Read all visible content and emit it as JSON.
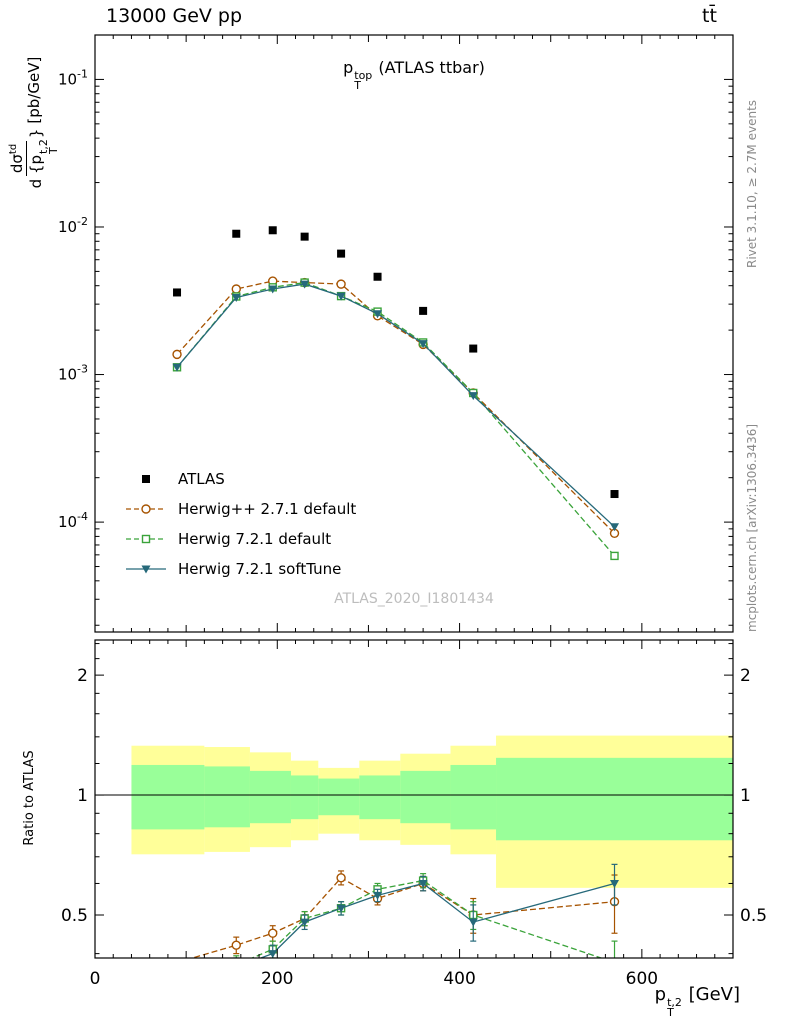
{
  "header": {
    "left": "13000 GeV pp",
    "right": "tt̄"
  },
  "panel_title": {
    "base": "p",
    "sub": "T",
    "sup": "top",
    "rest": " (ATLAS ttbar)"
  },
  "y_label": {
    "numerator_main": "dσ",
    "numerator_sup": "td",
    "den_pre": "d {",
    "den_base": "p",
    "den_sub": "T",
    "den_sup": "t,2",
    "den_post": "}",
    "units": "[pb/GeV]"
  },
  "x_label": {
    "base": "p",
    "sub": "T",
    "sup": "t,2",
    "units": " [GeV]"
  },
  "ratio_label": "Ratio to ATLAS",
  "watermark": "ATLAS_2020_I1801434",
  "side_notes": {
    "top": "Rivet 3.1.10, ≥ 2.7M events",
    "bottom": "mcplots.cern.ch [arXiv:1306.3436]"
  },
  "legend": {
    "items": [
      {
        "label": "ATLAS",
        "marker": "square-filled",
        "color": "#000000",
        "line": "none"
      },
      {
        "label": "Herwig++ 2.7.1 default",
        "marker": "circle-open",
        "color": "#a65300",
        "line": "dashed"
      },
      {
        "label": "Herwig 7.2.1 default",
        "marker": "square-open",
        "color": "#3aa33a",
        "line": "dashed"
      },
      {
        "label": "Herwig 7.2.1 softTune",
        "marker": "triangle-down-filled",
        "color": "#26697a",
        "line": "solid"
      }
    ]
  },
  "chart_data": {
    "type": "line",
    "title": "pT^top (ATLAS ttbar)",
    "xlabel": "pT^{t,2} [GeV]",
    "ylabel": "dσ^td / d{pT^{t,2}} [pb/GeV]",
    "ylabel_ratio": "Ratio to ATLAS",
    "x": [
      90,
      155,
      195,
      230,
      270,
      310,
      360,
      415,
      570
    ],
    "xlim": [
      0,
      700
    ],
    "x_major_ticks": [
      0,
      200,
      400,
      600
    ],
    "main_panel": {
      "yscale": "log",
      "ylim": [
        1.8e-05,
        0.2
      ],
      "y_decades": [
        -1,
        -2,
        -3,
        -4
      ],
      "series": [
        {
          "name": "ATLAS",
          "marker": "square-filled",
          "color": "#000000",
          "line": "none",
          "values": [
            0.0036,
            0.009,
            0.0095,
            0.0086,
            0.0066,
            0.0046,
            0.0027,
            0.0015,
            0.000155
          ]
        },
        {
          "name": "Herwig++ 2.7.1 default",
          "marker": "circle-open",
          "color": "#a65300",
          "line": "dashed",
          "values": [
            0.00137,
            0.0038,
            0.0043,
            0.0042,
            0.0041,
            0.0025,
            0.0016,
            0.00075,
            8.4e-05
          ]
        },
        {
          "name": "Herwig 7.2.1 default",
          "marker": "square-open",
          "color": "#3aa33a",
          "line": "dashed",
          "values": [
            0.00112,
            0.00338,
            0.0039,
            0.0042,
            0.0034,
            0.00267,
            0.00165,
            0.00075,
            5.9e-05
          ]
        },
        {
          "name": "Herwig 7.2.1 softTune",
          "marker": "triangle-down-filled",
          "color": "#26697a",
          "line": "solid",
          "values": [
            0.00112,
            0.00333,
            0.0038,
            0.0041,
            0.0034,
            0.00258,
            0.00162,
            0.00072,
            9.3e-05
          ]
        }
      ]
    },
    "ratio_panel": {
      "yscale": "log",
      "ylim": [
        0.39,
        2.45
      ],
      "y_major_ticks": [
        0.5,
        1,
        2
      ],
      "y_minor_ticks": [
        0.4,
        0.6,
        0.7,
        0.8,
        0.9,
        1.2,
        1.4,
        1.6,
        1.8,
        2.2,
        2.4
      ],
      "reference_line": 1,
      "band_colors": {
        "outer": "#ffff99",
        "inner": "#99ff99"
      },
      "bands": {
        "edges": [
          40,
          120,
          170,
          215,
          245,
          290,
          335,
          390,
          440,
          700
        ],
        "yellow_lo": [
          0.71,
          0.72,
          0.74,
          0.77,
          0.8,
          0.77,
          0.75,
          0.71,
          0.585
        ],
        "yellow_hi": [
          1.33,
          1.32,
          1.28,
          1.22,
          1.17,
          1.22,
          1.27,
          1.33,
          1.41
        ],
        "green_lo": [
          0.82,
          0.83,
          0.85,
          0.87,
          0.89,
          0.87,
          0.85,
          0.82,
          0.77
        ],
        "green_hi": [
          1.19,
          1.18,
          1.15,
          1.12,
          1.1,
          1.12,
          1.15,
          1.19,
          1.24
        ]
      },
      "series": [
        {
          "name": "Herwig++ 2.7.1 default",
          "marker": "circle-open",
          "color": "#a65300",
          "line": "dashed",
          "values": [
            0.38,
            0.42,
            0.45,
            0.49,
            0.62,
            0.55,
            0.6,
            0.5,
            0.54
          ],
          "yerr": [
            0,
            0.02,
            0.02,
            0.02,
            0.025,
            0.02,
            0.025,
            0.05,
            0.09
          ]
        },
        {
          "name": "Herwig 7.2.1 default",
          "marker": "square-open",
          "color": "#3aa33a",
          "line": "dashed",
          "values": [
            0.31,
            0.375,
            0.41,
            0.49,
            0.52,
            0.58,
            0.61,
            0.5,
            0.38
          ],
          "yerr": [
            0,
            0.02,
            0.02,
            0.02,
            0.02,
            0.02,
            0.025,
            0.04,
            0.05
          ]
        },
        {
          "name": "Herwig 7.2.1 softTune",
          "marker": "triangle-down-filled",
          "color": "#26697a",
          "line": "solid",
          "values": [
            0.31,
            0.37,
            0.4,
            0.48,
            0.52,
            0.56,
            0.6,
            0.48,
            0.6
          ],
          "yerr": [
            0,
            0.02,
            0.02,
            0.02,
            0.02,
            0.02,
            0.025,
            0.05,
            0.07
          ]
        }
      ]
    }
  }
}
